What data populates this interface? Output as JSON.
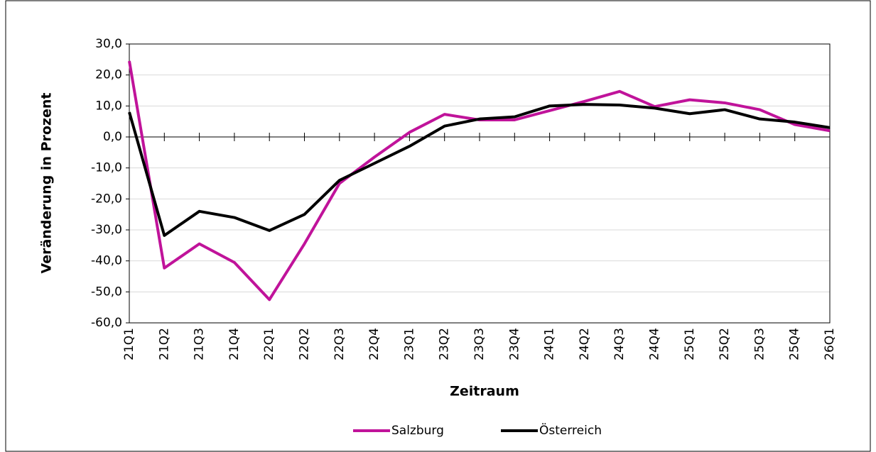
{
  "chart_data": {
    "type": "line",
    "x_label": "Zeitraum",
    "y_label": "Veränderung in Prozent",
    "categories": [
      "21Q1",
      "21Q2",
      "21Q3",
      "21Q4",
      "22Q1",
      "22Q2",
      "22Q3",
      "22Q4",
      "23Q1",
      "23Q2",
      "23Q3",
      "23Q4",
      "24Q1",
      "24Q2",
      "24Q3",
      "24Q4",
      "25Q1",
      "25Q2",
      "25Q3",
      "25Q4",
      "26Q1"
    ],
    "series": [
      {
        "name": "Salzburg",
        "color": "#c0139a",
        "values": [
          24.5,
          -42.3,
          -34.5,
          -40.5,
          -52.5,
          -34.5,
          -15,
          -6.5,
          1.5,
          7.3,
          5.5,
          5.5,
          8.5,
          11.5,
          14.7,
          9.8,
          12,
          11,
          8.8,
          4,
          2
        ]
      },
      {
        "name": "Österreich",
        "color": "#000000",
        "values": [
          8,
          -31.8,
          -24,
          -26,
          -30.2,
          -25,
          -14,
          -8.5,
          -3,
          3.5,
          5.8,
          6.5,
          10,
          10.5,
          10.3,
          9.3,
          7.5,
          8.8,
          5.8,
          4.8,
          3
        ]
      }
    ],
    "ylim": [
      -60,
      30
    ],
    "yticks": [
      {
        "value": -60,
        "label": "-60,0"
      },
      {
        "value": -50,
        "label": "-50,0"
      },
      {
        "value": -40,
        "label": "-40,0"
      },
      {
        "value": -30,
        "label": "-30,0"
      },
      {
        "value": -20,
        "label": "-20,0"
      },
      {
        "value": -10,
        "label": "-10,0"
      },
      {
        "value": 0,
        "label": "0,0"
      },
      {
        "value": 10,
        "label": "10,0"
      },
      {
        "value": 20,
        "label": "20,0"
      },
      {
        "value": 30,
        "label": "30,0"
      }
    ],
    "grid": true,
    "legend": "bottom"
  }
}
